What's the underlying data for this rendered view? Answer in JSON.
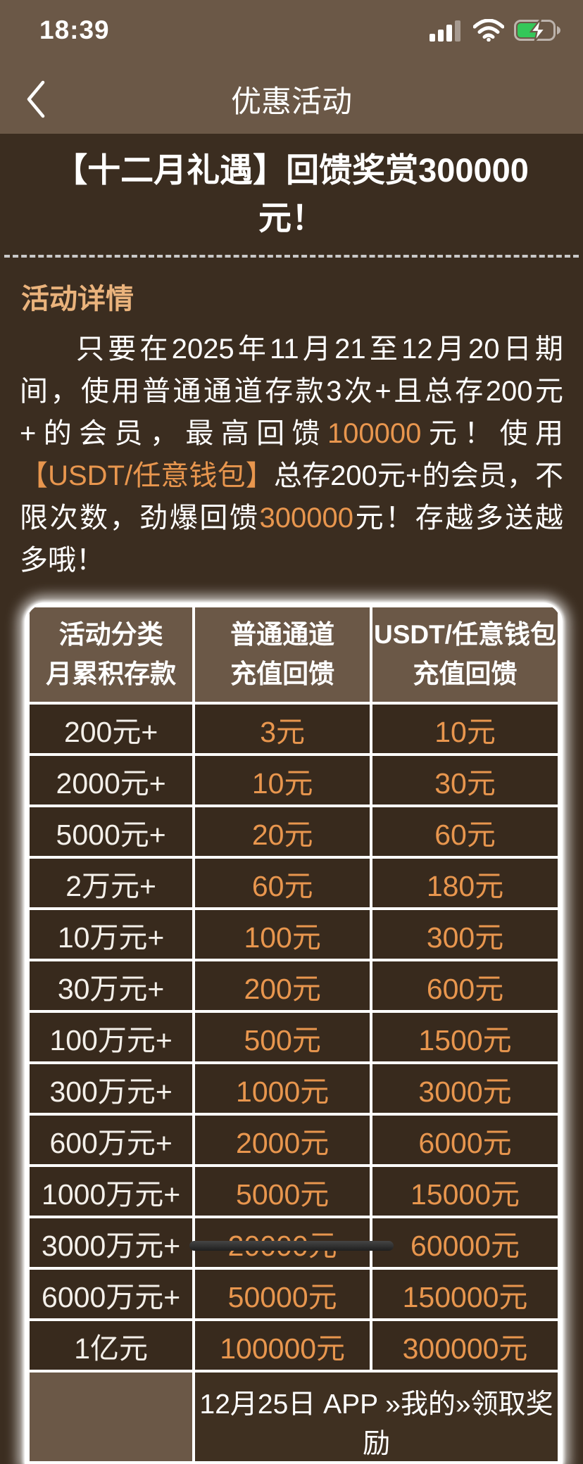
{
  "colors": {
    "header_bg": "#6b5847",
    "page_bg": "#3b2d20",
    "cell_bg": "#382a1d",
    "accent_orange": "#e8964e",
    "heading_tan": "#eab37c",
    "battery_green": "#34c759",
    "text_white": "#ffffff"
  },
  "status_bar": {
    "time": "18:39",
    "icons": [
      "cellular-signal",
      "wifi",
      "battery-charging"
    ]
  },
  "nav": {
    "title": "优惠活动"
  },
  "promo": {
    "title": "【十二月礼遇】回馈奖赏300000元！"
  },
  "details": {
    "heading": "活动详情",
    "paragraph": [
      {
        "t": "只要在2025年11月21至12月20日期间，使用普通通道存款3次+且总存200元+的会员，最高回馈",
        "hl": false
      },
      {
        "t": "100000",
        "hl": true
      },
      {
        "t": "元！使用",
        "hl": false
      },
      {
        "t": "【USDT/任意钱包】",
        "hl": true
      },
      {
        "t": "总存200元+的会员，不限次数，劲爆回馈",
        "hl": false
      },
      {
        "t": "300000",
        "hl": true
      },
      {
        "t": "元！存越多送越多哦！",
        "hl": false
      }
    ]
  },
  "table": {
    "columns": [
      {
        "line1": "活动分类",
        "line2": "月累积存款"
      },
      {
        "line1": "普通通道",
        "line2": "充值回馈"
      },
      {
        "line1": "USDT/任意钱包",
        "line2": "充值回馈"
      }
    ],
    "rows": [
      {
        "deposit": "200元+",
        "normal": "3元",
        "usdt": "10元"
      },
      {
        "deposit": "2000元+",
        "normal": "10元",
        "usdt": "30元"
      },
      {
        "deposit": "5000元+",
        "normal": "20元",
        "usdt": "60元"
      },
      {
        "deposit": "2万元+",
        "normal": "60元",
        "usdt": "180元"
      },
      {
        "deposit": "10万元+",
        "normal": "100元",
        "usdt": "300元"
      },
      {
        "deposit": "30万元+",
        "normal": "200元",
        "usdt": "600元"
      },
      {
        "deposit": "100万元+",
        "normal": "500元",
        "usdt": "1500元"
      },
      {
        "deposit": "300万元+",
        "normal": "1000元",
        "usdt": "3000元"
      },
      {
        "deposit": "600万元+",
        "normal": "2000元",
        "usdt": "6000元"
      },
      {
        "deposit": "1000万元+",
        "normal": "5000元",
        "usdt": "15000元"
      },
      {
        "deposit": "3000万元+",
        "normal": "20000元",
        "usdt": "60000元"
      },
      {
        "deposit": "6000万元+",
        "normal": "50000元",
        "usdt": "150000元"
      },
      {
        "deposit": "1亿元",
        "normal": "100000元",
        "usdt": "300000元"
      }
    ],
    "footer_note": "12月25日 APP »我的»领取奖励"
  }
}
